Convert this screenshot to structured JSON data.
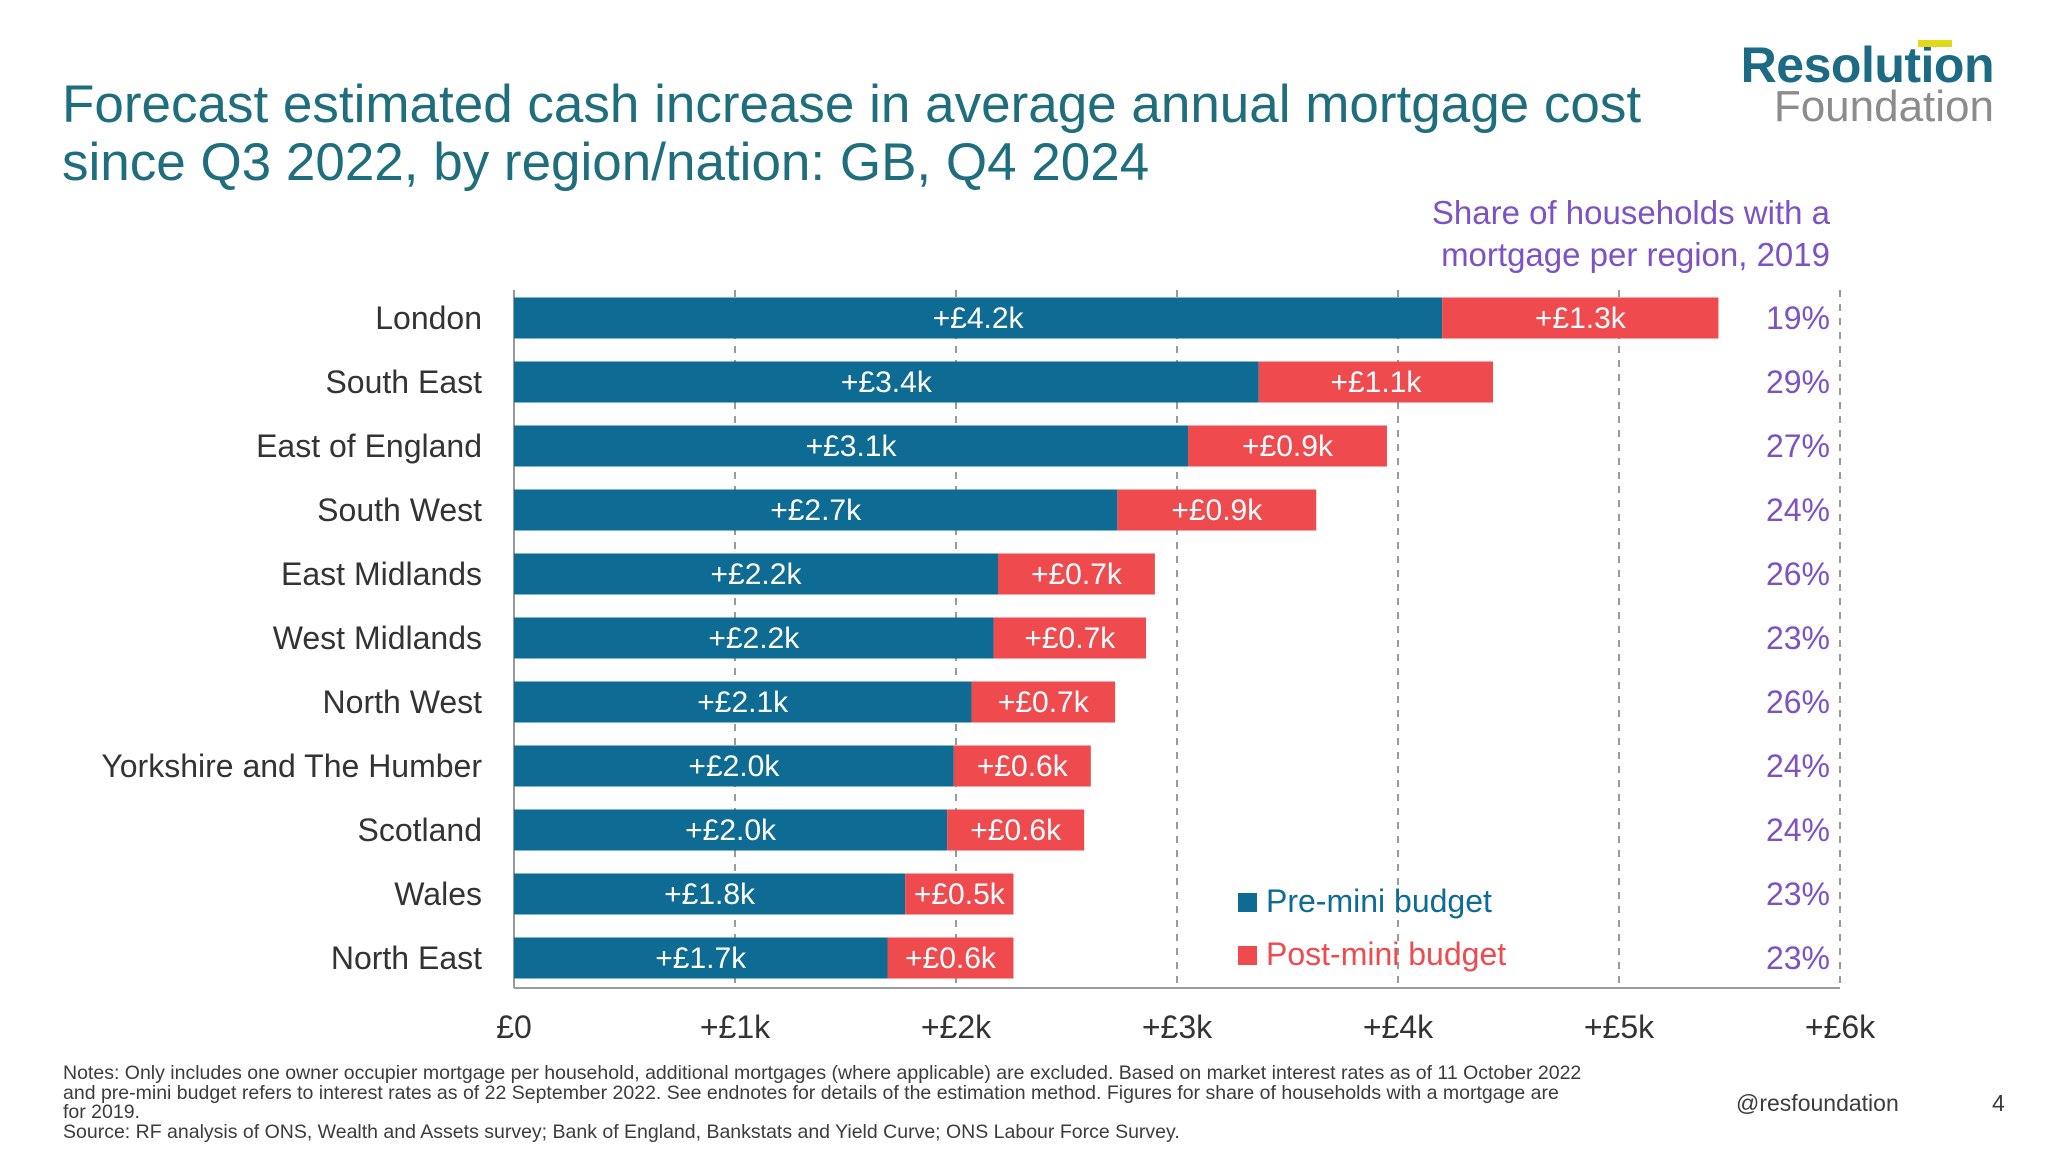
{
  "title": "Forecast estimated cash increase in average annual mortgage cost since Q3 2022, by region/nation: GB, Q4 2024",
  "logo": {
    "line1": "Resolution",
    "line2": "Foundation"
  },
  "share_header": [
    "Share of households with a",
    "mortgage per region, 2019"
  ],
  "notes": [
    "Notes: Only includes one owner occupier mortgage per household, additional mortgages (where applicable) are excluded. Based on market interest rates as of 11 October 2022",
    "and pre-mini budget refers to interest rates as of 22 September 2022. See endnotes for details of the estimation method. Figures for share of households with a mortgage are",
    "for 2019.",
    "Source: RF analysis of ONS, Wealth and Assets survey; Bank of England, Bankstats and Yield Curve; ONS Labour Force Survey."
  ],
  "footer": {
    "handle": "@resfoundation",
    "page": "4"
  },
  "colors": {
    "pre": "#0e6b94",
    "post": "#ef4a4e",
    "share": "#7c52c4",
    "grid": "#9a9a9a"
  },
  "chart_data": {
    "type": "bar",
    "orientation": "horizontal",
    "stacked": true,
    "categories": [
      "London",
      "South East",
      "East of England",
      "South West",
      "East Midlands",
      "West Midlands",
      "North West",
      "Yorkshire and The Humber",
      "Scotland",
      "Wales",
      "North East"
    ],
    "series": [
      {
        "name": "Pre-mini budget",
        "values": [
          4.2,
          3.37,
          3.05,
          2.73,
          2.19,
          2.17,
          2.07,
          1.99,
          1.96,
          1.77,
          1.69
        ],
        "labels": [
          "+£4.2k",
          "+£3.4k",
          "+£3.1k",
          "+£2.7k",
          "+£2.2k",
          "+£2.2k",
          "+£2.1k",
          "+£2.0k",
          "+£2.0k",
          "+£1.8k",
          "+£1.7k"
        ]
      },
      {
        "name": "Post-mini budget",
        "values": [
          1.25,
          1.06,
          0.9,
          0.9,
          0.71,
          0.69,
          0.65,
          0.62,
          0.62,
          0.49,
          0.57
        ],
        "labels": [
          "+£1.3k",
          "+£1.1k",
          "+£0.9k",
          "+£0.9k",
          "+£0.7k",
          "+£0.7k",
          "+£0.7k",
          "+£0.6k",
          "+£0.6k",
          "+£0.5k",
          "+£0.6k"
        ]
      }
    ],
    "share_of_households": [
      "19%",
      "29%",
      "27%",
      "24%",
      "26%",
      "23%",
      "26%",
      "24%",
      "24%",
      "23%",
      "23%"
    ],
    "x_ticks": [
      "£0",
      "+£1k",
      "+£2k",
      "+£3k",
      "+£4k",
      "+£5k",
      "+£6k"
    ],
    "xlim": [
      0,
      6
    ],
    "grid": "vertical dashed",
    "legend": "bottom-right"
  }
}
